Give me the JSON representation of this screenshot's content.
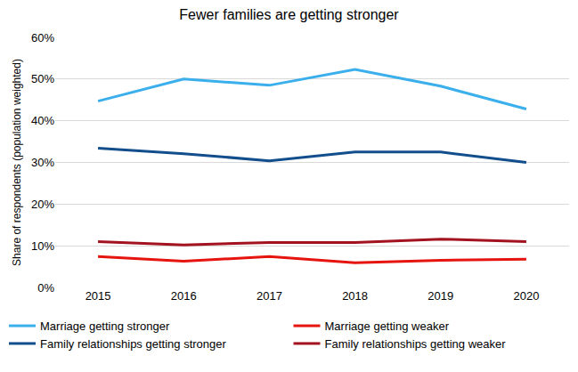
{
  "chart_data": {
    "type": "line",
    "title": "Fewer families are getting stronger",
    "y_label": "Share of respondents (population weighted)",
    "categories": [
      "2015",
      "2016",
      "2017",
      "2018",
      "2019",
      "2020"
    ],
    "series": [
      {
        "name": "Marriage getting stronger",
        "color": "#3AAFEC",
        "values": [
          44.7,
          50.0,
          48.5,
          52.3,
          48.3,
          42.8
        ]
      },
      {
        "name": "Marriage getting weaker",
        "color": "#E5140F",
        "values": [
          7.4,
          6.3,
          7.4,
          5.9,
          6.5,
          6.8
        ]
      },
      {
        "name": "Family relationships getting stronger",
        "color": "#124E8C",
        "values": [
          33.4,
          32.1,
          30.4,
          32.5,
          32.5,
          30.0
        ]
      },
      {
        "name": "Family relationships getting weaker",
        "color": "#A3131F",
        "values": [
          11.0,
          10.2,
          10.8,
          10.8,
          11.6,
          11.0
        ]
      }
    ],
    "ylim": [
      0,
      60
    ],
    "yticks": [
      {
        "value": 0,
        "label": "0%"
      },
      {
        "value": 10,
        "label": "10%"
      },
      {
        "value": 20,
        "label": "20%"
      },
      {
        "value": 30,
        "label": "30%"
      },
      {
        "value": 40,
        "label": "40%"
      },
      {
        "value": 50,
        "label": "50%"
      },
      {
        "value": 60,
        "label": "60%"
      }
    ],
    "grid": true,
    "legend": "bottom"
  }
}
